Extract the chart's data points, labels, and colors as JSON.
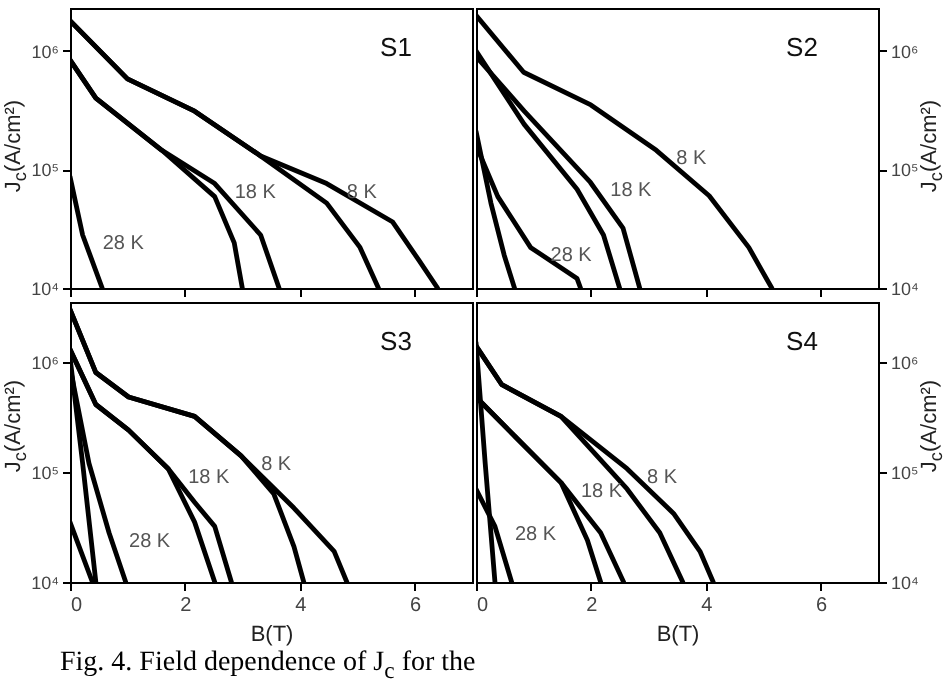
{
  "chart_data": [
    {
      "type": "line",
      "title": "S1",
      "tick_labels": "y",
      "ylabel": "J$_{c}$(A/cm²)",
      "log": "y",
      "xlim": [
        0,
        7
      ],
      "xticks": [
        {
          "value": 0,
          "label": null
        },
        {
          "value": 2,
          "label": null
        },
        {
          "value": 4,
          "label": null
        },
        {
          "value": 6,
          "label": null
        }
      ],
      "ylim": [
        10000,
        2300000
      ],
      "yticks": [
        {
          "value": 10000,
          "label": "10⁴"
        },
        {
          "value": 100000,
          "label": "10⁵"
        },
        {
          "value": 1000000,
          "label": "10⁶"
        }
      ],
      "series": [
        {
          "color": "#000000",
          "x": [
            0,
            1.0,
            2.17,
            3.32,
            4.47,
            5.05,
            5.37
          ],
          "values": [
            1800000,
            580000,
            310000,
            130000,
            52000,
            22000,
            10000
          ]
        },
        {
          "name": "8 K",
          "color": "#000000",
          "x": [
            0,
            1.0,
            2.17,
            3.32,
            4.47,
            5.62,
            6.08,
            6.4
          ],
          "values": [
            1800000,
            580000,
            310000,
            130000,
            76000,
            36000,
            17000,
            10000
          ]
        },
        {
          "color": "#000000",
          "x": [
            0,
            0.45,
            1.6,
            2.52,
            2.86,
            3.0
          ],
          "values": [
            840000,
            400000,
            145000,
            59000,
            24000,
            10000
          ]
        },
        {
          "name": "18 K",
          "color": "#000000",
          "x": [
            0,
            0.45,
            1.6,
            2.52,
            3.32,
            3.64
          ],
          "values": [
            840000,
            400000,
            145000,
            76000,
            28000,
            10000
          ]
        },
        {
          "name": "28 K",
          "color": "#000000",
          "x": [
            0,
            0.22,
            0.56
          ],
          "values": [
            87000,
            28000,
            10000
          ]
        }
      ]
    },
    {
      "type": "line",
      "title": "S2",
      "tick_labels": "y",
      "y2label": "J$_{c}$(A/cm²)",
      "log": "y2",
      "xlim": [
        0,
        7
      ],
      "xticks": [
        {
          "value": 0,
          "label": null
        },
        {
          "value": 2,
          "label": null
        },
        {
          "value": 4,
          "label": null
        },
        {
          "value": 6,
          "label": null
        }
      ],
      "y2lim": [
        10000,
        2300000
      ],
      "y2ticks": [
        {
          "value": 10000,
          "label": "10⁴"
        },
        {
          "value": 100000,
          "label": "10⁵"
        },
        {
          "value": 1000000,
          "label": "10⁶"
        }
      ],
      "series": [
        {
          "name": "8 K",
          "color": "#000000",
          "axis": "y2",
          "x": [
            0,
            0.83,
            2.0,
            3.14,
            4.06,
            4.75,
            5.15
          ],
          "values": [
            2000000,
            660000,
            350000,
            145000,
            60000,
            22000,
            10000
          ]
        },
        {
          "color": "#000000",
          "axis": "y2",
          "x": [
            0,
            0.84,
            1.76,
            2.22,
            2.5
          ],
          "values": [
            1000000,
            240000,
            68000,
            28000,
            10000
          ]
        },
        {
          "name": "18 K",
          "color": "#000000",
          "axis": "y2",
          "x": [
            0,
            0.84,
            1.99,
            2.56,
            2.85
          ],
          "values": [
            900000,
            310000,
            78000,
            32000,
            10000
          ]
        },
        {
          "color": "#000000",
          "axis": "y2",
          "x": [
            0,
            0.26,
            0.49,
            0.67
          ],
          "values": [
            210000,
            52000,
            19000,
            10000
          ]
        },
        {
          "name": "28 K",
          "color": "#000000",
          "axis": "y2",
          "x": [
            0,
            0.38,
            0.95,
            1.76,
            1.82
          ],
          "values": [
            160000,
            59000,
            22000,
            12000,
            10000
          ]
        }
      ]
    },
    {
      "type": "line",
      "title": "S3",
      "xlabel": "B(T)",
      "ylabel": "J$_{c}$(A/cm²)",
      "log": "y",
      "xlim": [
        0,
        7
      ],
      "xticks": [
        0,
        2,
        4,
        6
      ],
      "ylim": [
        10000,
        3500000
      ],
      "yticks": [
        {
          "value": 10000,
          "label": "10⁴"
        },
        {
          "value": 100000,
          "label": "10⁵"
        },
        {
          "value": 1000000,
          "label": "10⁶"
        }
      ],
      "annotations": [
        "Fig. 4.  Field dependence of J$_{c}$ for the"
      ],
      "series": [
        {
          "name": "8 K",
          "color": "#000000",
          "x": [
            0,
            0.45,
            1.02,
            2.17,
            2.98,
            3.9,
            4.6,
            4.82
          ],
          "values": [
            3000000,
            800000,
            480000,
            320000,
            140000,
            47000,
            19000,
            10000
          ]
        },
        {
          "color": "#000000",
          "x": [
            0,
            0.45,
            1.02,
            2.17,
            2.98,
            3.55,
            3.9,
            4.07
          ],
          "values": [
            3000000,
            800000,
            480000,
            320000,
            140000,
            63000,
            21000,
            10000
          ]
        },
        {
          "color": "#000000",
          "x": [
            0,
            0.45,
            1.02,
            1.71,
            2.17,
            2.52
          ],
          "values": [
            1300000,
            410000,
            240000,
            107000,
            35000,
            10000
          ]
        },
        {
          "name": "18 K",
          "color": "#000000",
          "x": [
            0,
            0.45,
            1.02,
            1.71,
            2.17,
            2.52,
            2.81
          ],
          "values": [
            1300000,
            410000,
            240000,
            107000,
            53000,
            32000,
            10000
          ]
        },
        {
          "color": "#000000",
          "x": [
            0,
            0.22,
            0.45
          ],
          "values": [
            1100000,
            120000,
            10000
          ]
        },
        {
          "name": "28 K",
          "color": "#000000",
          "x": [
            0,
            0.33,
            0.68,
            0.97
          ],
          "values": [
            900000,
            120000,
            28000,
            10000
          ]
        },
        {
          "color": "#000000",
          "x": [
            0,
            0.39
          ],
          "values": [
            35000,
            10000
          ]
        }
      ]
    },
    {
      "type": "line",
      "title": "S4",
      "xlabel": "B(T)",
      "y2label": "J$_{c}$(A/cm²)",
      "log": "y2",
      "xlim": [
        0,
        7
      ],
      "xticks": [
        0,
        2,
        4,
        6
      ],
      "y2lim": [
        10000,
        3500000
      ],
      "y2ticks": [
        {
          "value": 10000,
          "label": "10⁴"
        },
        {
          "value": 100000,
          "label": "10⁵"
        },
        {
          "value": 1000000,
          "label": "10⁶"
        }
      ],
      "series": [
        {
          "name": "8 K",
          "color": "#000000",
          "axis": "y2",
          "x": [
            0,
            0.45,
            1.48,
            2.63,
            3.44,
            3.9,
            4.13
          ],
          "values": [
            1400000,
            620000,
            320000,
            107000,
            42000,
            19000,
            10000
          ]
        },
        {
          "color": "#000000",
          "axis": "y2",
          "x": [
            0,
            0.45,
            1.48,
            2.63,
            3.2,
            3.6
          ],
          "values": [
            1400000,
            620000,
            320000,
            70000,
            28000,
            10000
          ]
        },
        {
          "color": "#000000",
          "axis": "y2",
          "x": [
            0,
            0.68,
            1.48,
            1.94,
            2.17
          ],
          "values": [
            480000,
            210000,
            80000,
            24000,
            10000
          ]
        },
        {
          "name": "18 K",
          "color": "#000000",
          "axis": "y2",
          "x": [
            0,
            0.68,
            1.48,
            2.17,
            2.57
          ],
          "values": [
            480000,
            210000,
            80000,
            28000,
            10000
          ]
        },
        {
          "color": "#000000",
          "axis": "y2",
          "x": [
            0,
            0.16,
            0.33
          ],
          "values": [
            1500000,
            120000,
            10000
          ]
        },
        {
          "name": "28 K",
          "color": "#000000",
          "axis": "y2",
          "x": [
            0,
            0.33,
            0.62
          ],
          "values": [
            70000,
            32000,
            10000
          ]
        }
      ]
    }
  ]
}
